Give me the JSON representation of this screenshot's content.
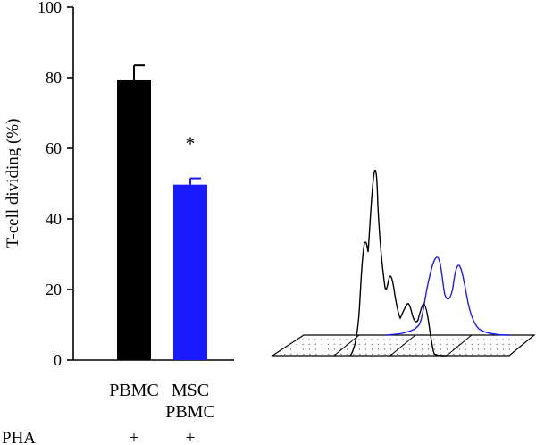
{
  "chart_data": {
    "type": "bar",
    "ylabel": "T-cell dividing (%)",
    "ylim": [
      0,
      100
    ],
    "yticks": [
      0,
      20,
      40,
      60,
      80,
      100
    ],
    "categories": [
      {
        "lines": [
          "PBMC"
        ],
        "color": "#000000"
      },
      {
        "lines": [
          "MSC",
          "PBMC"
        ],
        "color": "#1a1aff"
      }
    ],
    "values": [
      79.5,
      49.7
    ],
    "errors": [
      4,
      1.8
    ],
    "significance": [
      "",
      "*"
    ],
    "condition_row": {
      "label": "PHA",
      "marks": [
        "+",
        "+"
      ]
    }
  },
  "histogram_inset": {
    "series_colors": [
      "#000000",
      "#1a1aff"
    ]
  }
}
